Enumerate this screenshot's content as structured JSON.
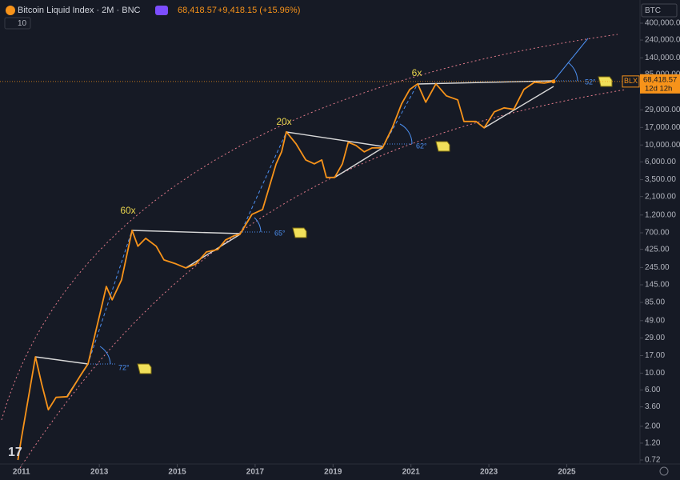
{
  "chart_data": {
    "type": "line",
    "title": "Bitcoin Liquid Index · 2M · BNC",
    "last_value_label": "68,418.57",
    "change": "+9,418.15 (+15.96%)",
    "indicator_value": "10",
    "symbol": "BTC",
    "countdown": "12d 12h",
    "log_scale": true,
    "grid": false,
    "annotations": [
      "60x",
      "20x",
      "6x",
      "72°",
      "65°",
      "62°",
      "52°"
    ],
    "x": [
      2010.91,
      2010.99,
      2011.36,
      2011.52,
      2011.69,
      2011.89,
      2012.18,
      2012.51,
      2012.71,
      2013.0,
      2013.18,
      2013.33,
      2013.57,
      2013.84,
      2013.99,
      2014.19,
      2014.46,
      2014.66,
      2014.97,
      2015.22,
      2015.48,
      2015.75,
      2016.04,
      2016.24,
      2016.45,
      2016.61,
      2016.92,
      2017.19,
      2017.54,
      2017.68,
      2017.8,
      2018.05,
      2018.3,
      2018.52,
      2018.71,
      2018.83,
      2019.04,
      2019.24,
      2019.39,
      2019.59,
      2019.8,
      2020.0,
      2020.27,
      2020.52,
      2020.76,
      2020.97,
      2021.17,
      2021.38,
      2021.64,
      2021.91,
      2022.2,
      2022.36,
      2022.67,
      2022.88,
      2023.14,
      2023.39,
      2023.64,
      2023.9,
      2024.17,
      2024.42,
      2024.66
    ],
    "series": [
      {
        "name": "BLX",
        "color": "#f7931a",
        "values": [
          0.72,
          1.3,
          16.4,
          7.2,
          3.3,
          4.8,
          4.9,
          9.2,
          13.2,
          56,
          138,
          92,
          168,
          755,
          466,
          593,
          466,
          308,
          273,
          242,
          273,
          393,
          422,
          565,
          637,
          669,
          1227,
          1419,
          5650,
          8130,
          14900,
          10350,
          6370,
          5650,
          6370,
          3740,
          3740,
          5650,
          10860,
          9860,
          8130,
          9160,
          9160,
          16800,
          34760,
          53830,
          63700,
          36500,
          63700,
          44260,
          39260,
          20400,
          20400,
          16800,
          27300,
          30800,
          29400,
          53830,
          66800,
          65300,
          68418.57
        ]
      }
    ],
    "xlim": [
      2010.45,
      2026.88
    ],
    "xticks": [
      2011,
      2013,
      2015,
      2017,
      2019,
      2021,
      2023,
      2025
    ],
    "ylim": [
      0.393,
      807000
    ],
    "yticks": [
      0.72,
      {
        "value": 1.2,
        "label": "1.20"
      },
      {
        "value": 2,
        "label": "2.00"
      },
      {
        "value": 3.6,
        "label": "3.60"
      },
      {
        "value": 6,
        "label": "6.00"
      },
      {
        "value": 10,
        "label": "10.00"
      },
      {
        "value": 17,
        "label": "17.00"
      },
      {
        "value": 29,
        "label": "29.00"
      },
      {
        "value": 49,
        "label": "49.00"
      },
      {
        "value": 85,
        "label": "85.00"
      },
      {
        "value": 145,
        "label": "145.00"
      },
      {
        "value": 245,
        "label": "245.00"
      },
      {
        "value": 425,
        "label": "425.00"
      },
      {
        "value": 700,
        "label": "700.00"
      },
      {
        "value": 1200,
        "label": "1,200.00"
      },
      {
        "value": 2100,
        "label": "2,100.00"
      },
      {
        "value": 3500,
        "label": "3,500.00"
      },
      {
        "value": 6000,
        "label": "6,000.00"
      },
      {
        "value": 10000,
        "label": "10,000.00"
      },
      {
        "value": 17000,
        "label": "17,000.00"
      },
      {
        "value": 29000,
        "label": "29,000.00"
      },
      {
        "value": 85000,
        "label": "85,000.00"
      },
      {
        "value": 140000,
        "label": "140,000.00"
      },
      {
        "value": 240000,
        "label": "240,000.00"
      },
      {
        "value": 400000,
        "label": "400,000.00"
      }
    ]
  }
}
